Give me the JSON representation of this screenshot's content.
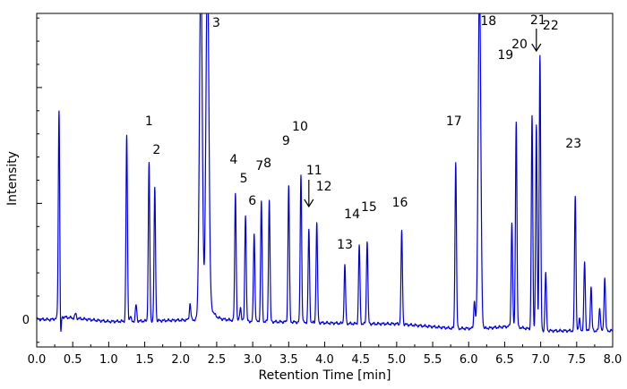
{
  "chart_data": {
    "type": "line",
    "title": "",
    "xlabel": "Retention Time [min]",
    "ylabel": "Intensity",
    "xlim": [
      0.0,
      8.0
    ],
    "ylim": [
      -0.12,
      1.32
    ],
    "x_ticks": [
      "0.0",
      "0.5",
      "1.0",
      "1.5",
      "2.0",
      "2.5",
      "3.0",
      "3.5",
      "4.0",
      "4.5",
      "5.0",
      "5.5",
      "6.0",
      "6.5",
      "7.0",
      "7.5",
      "8.0"
    ],
    "y_ticks": [
      "0"
    ],
    "grid": false,
    "line_color": "#0000e0",
    "baseline": [
      [
        0.0,
        0.0
      ],
      [
        0.2,
        -0.002
      ],
      [
        0.35,
        0.01
      ],
      [
        1.0,
        -0.01
      ],
      [
        1.5,
        -0.008
      ],
      [
        2.0,
        -0.004
      ],
      [
        2.5,
        0.0
      ],
      [
        3.0,
        -0.01
      ],
      [
        3.5,
        -0.012
      ],
      [
        4.0,
        -0.016
      ],
      [
        4.5,
        -0.02
      ],
      [
        5.0,
        -0.02
      ],
      [
        5.8,
        -0.04
      ],
      [
        6.2,
        -0.04
      ],
      [
        6.6,
        -0.03
      ],
      [
        7.0,
        -0.05
      ],
      [
        7.5,
        -0.05
      ],
      [
        7.8,
        -0.05
      ],
      [
        8.0,
        -0.05
      ]
    ],
    "peaks": [
      {
        "x": 0.31,
        "height": 0.9,
        "width": 0.01
      },
      {
        "x": 0.33,
        "height": -0.13,
        "width": 0.008
      },
      {
        "x": 0.54,
        "height": 0.02,
        "width": 0.01
      },
      {
        "x": 1.25,
        "height": 0.8,
        "width": 0.01
      },
      {
        "x": 1.3,
        "height": 0.02,
        "width": 0.01
      },
      {
        "x": 1.38,
        "height": 0.07,
        "width": 0.01
      },
      {
        "x": 1.56,
        "label": "1",
        "height": 0.68,
        "width": 0.01
      },
      {
        "x": 1.64,
        "label": "2",
        "height": 0.57,
        "width": 0.01
      },
      {
        "x": 2.13,
        "height": 0.07,
        "width": 0.01
      },
      {
        "x": 2.28,
        "height": 1.5,
        "width": 0.02
      },
      {
        "x": 2.37,
        "label": "3",
        "height": 1.5,
        "width": 0.02
      },
      {
        "x": 2.76,
        "label": "4",
        "height": 0.55,
        "width": 0.01
      },
      {
        "x": 2.83,
        "height": 0.06,
        "width": 0.01
      },
      {
        "x": 2.9,
        "label": "5",
        "height": 0.46,
        "width": 0.01
      },
      {
        "x": 3.02,
        "label": "6",
        "height": 0.38,
        "width": 0.01
      },
      {
        "x": 3.12,
        "label": "7",
        "height": 0.52,
        "width": 0.01
      },
      {
        "x": 3.23,
        "label": "8",
        "height": 0.53,
        "width": 0.01
      },
      {
        "x": 3.5,
        "label": "9",
        "height": 0.59,
        "width": 0.01
      },
      {
        "x": 3.67,
        "label": "10",
        "height": 0.64,
        "width": 0.01
      },
      {
        "x": 3.78,
        "label": "11",
        "height": 0.4,
        "width": 0.01
      },
      {
        "x": 3.89,
        "label": "12",
        "height": 0.43,
        "width": 0.01
      },
      {
        "x": 4.28,
        "label": "13",
        "height": 0.25,
        "width": 0.01
      },
      {
        "x": 4.48,
        "label": "14",
        "height": 0.34,
        "width": 0.01
      },
      {
        "x": 4.59,
        "label": "15",
        "height": 0.36,
        "width": 0.01
      },
      {
        "x": 5.07,
        "label": "16",
        "height": 0.4,
        "width": 0.01
      },
      {
        "x": 5.82,
        "label": "17",
        "height": 0.72,
        "width": 0.01
      },
      {
        "x": 6.08,
        "height": 0.12,
        "width": 0.01
      },
      {
        "x": 6.15,
        "label": "18",
        "height": 1.5,
        "width": 0.018
      },
      {
        "x": 6.6,
        "height": 0.45,
        "width": 0.01
      },
      {
        "x": 6.66,
        "label": "19",
        "height": 0.89,
        "width": 0.01
      },
      {
        "x": 6.88,
        "label": "20",
        "height": 0.92,
        "width": 0.01
      },
      {
        "x": 6.94,
        "label": "21",
        "height": 0.88,
        "width": 0.01
      },
      {
        "x": 6.99,
        "label": "22",
        "height": 1.19,
        "width": 0.01
      },
      {
        "x": 7.07,
        "height": 0.25,
        "width": 0.01
      },
      {
        "x": 7.48,
        "label": "23",
        "height": 0.58,
        "width": 0.01
      },
      {
        "x": 7.54,
        "height": 0.05,
        "width": 0.01
      },
      {
        "x": 7.61,
        "height": 0.3,
        "width": 0.01
      },
      {
        "x": 7.7,
        "height": 0.19,
        "width": 0.01
      },
      {
        "x": 7.82,
        "height": 0.1,
        "width": 0.01
      },
      {
        "x": 7.89,
        "height": 0.23,
        "width": 0.01
      }
    ],
    "annotations": [
      {
        "type": "arrow",
        "points_to": "11",
        "x": 3.78
      },
      {
        "type": "arrow",
        "points_to": "21",
        "x": 6.94
      }
    ]
  }
}
